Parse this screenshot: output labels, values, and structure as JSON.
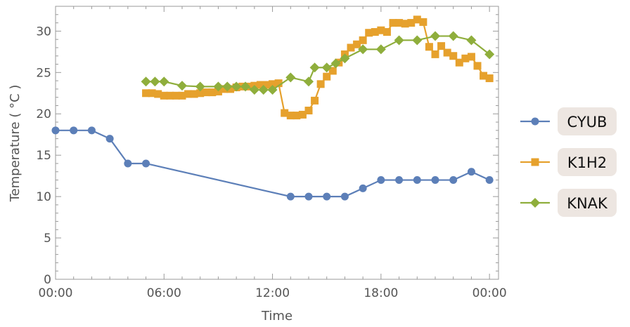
{
  "chart_data": {
    "type": "line",
    "xlabel": "Time",
    "ylabel": "Temperature ( °C )",
    "xlim": [
      "00:00",
      "24:30"
    ],
    "ylim": [
      0,
      33
    ],
    "x_ticks": [
      "00:00",
      "06:00",
      "12:00",
      "18:00",
      "00:00"
    ],
    "y_ticks": [
      0,
      5,
      10,
      15,
      20,
      25,
      30
    ],
    "grid": false,
    "legend_position": "right",
    "series": [
      {
        "name": "CYUB",
        "color": "#5c7fb8",
        "marker": "circle",
        "points": [
          [
            "00:00",
            18
          ],
          [
            "01:00",
            18
          ],
          [
            "02:00",
            18
          ],
          [
            "03:00",
            17
          ],
          [
            "04:00",
            14
          ],
          [
            "05:00",
            14
          ],
          [
            "13:00",
            10
          ],
          [
            "14:00",
            10
          ],
          [
            "15:00",
            10
          ],
          [
            "16:00",
            10
          ],
          [
            "17:00",
            11
          ],
          [
            "18:00",
            12
          ],
          [
            "19:00",
            12
          ],
          [
            "20:00",
            12
          ],
          [
            "21:00",
            12
          ],
          [
            "22:00",
            12
          ],
          [
            "23:00",
            13
          ],
          [
            "24:00",
            12
          ]
        ]
      },
      {
        "name": "K1H2",
        "color": "#e6a12d",
        "marker": "square",
        "points": [
          [
            "05:00",
            22.5
          ],
          [
            "05:20",
            22.5
          ],
          [
            "05:40",
            22.4
          ],
          [
            "06:00",
            22.2
          ],
          [
            "06:20",
            22.2
          ],
          [
            "06:40",
            22.2
          ],
          [
            "07:00",
            22.2
          ],
          [
            "07:20",
            22.4
          ],
          [
            "07:40",
            22.4
          ],
          [
            "08:00",
            22.5
          ],
          [
            "08:20",
            22.6
          ],
          [
            "08:40",
            22.6
          ],
          [
            "09:00",
            22.7
          ],
          [
            "09:20",
            23.0
          ],
          [
            "09:40",
            23.0
          ],
          [
            "10:00",
            23.2
          ],
          [
            "10:20",
            23.3
          ],
          [
            "10:40",
            23.3
          ],
          [
            "11:00",
            23.4
          ],
          [
            "11:20",
            23.5
          ],
          [
            "11:40",
            23.5
          ],
          [
            "12:00",
            23.6
          ],
          [
            "12:20",
            23.7
          ],
          [
            "12:40",
            20.1
          ],
          [
            "13:00",
            19.8
          ],
          [
            "13:20",
            19.8
          ],
          [
            "13:40",
            19.9
          ],
          [
            "14:00",
            20.4
          ],
          [
            "14:20",
            21.6
          ],
          [
            "14:40",
            23.6
          ],
          [
            "15:00",
            24.5
          ],
          [
            "15:20",
            25.2
          ],
          [
            "15:40",
            26.2
          ],
          [
            "16:00",
            27.2
          ],
          [
            "16:20",
            28.0
          ],
          [
            "16:40",
            28.4
          ],
          [
            "17:00",
            28.9
          ],
          [
            "17:20",
            29.8
          ],
          [
            "17:40",
            29.9
          ],
          [
            "18:00",
            30.1
          ],
          [
            "18:20",
            29.9
          ],
          [
            "18:40",
            31.0
          ],
          [
            "19:00",
            31.0
          ],
          [
            "19:20",
            30.9
          ],
          [
            "19:40",
            31.0
          ],
          [
            "20:00",
            31.4
          ],
          [
            "20:20",
            31.1
          ],
          [
            "20:40",
            28.1
          ],
          [
            "21:00",
            27.2
          ],
          [
            "21:20",
            28.2
          ],
          [
            "21:40",
            27.4
          ],
          [
            "22:00",
            27.0
          ],
          [
            "22:20",
            26.2
          ],
          [
            "22:40",
            26.7
          ],
          [
            "23:00",
            26.9
          ],
          [
            "23:20",
            25.8
          ],
          [
            "23:40",
            24.6
          ],
          [
            "24:00",
            24.3
          ]
        ]
      },
      {
        "name": "KNAK",
        "color": "#8fae3c",
        "marker": "diamond",
        "points": [
          [
            "05:00",
            23.9
          ],
          [
            "05:30",
            23.9
          ],
          [
            "06:00",
            23.9
          ],
          [
            "07:00",
            23.4
          ],
          [
            "08:00",
            23.3
          ],
          [
            "09:00",
            23.3
          ],
          [
            "09:30",
            23.3
          ],
          [
            "10:00",
            23.3
          ],
          [
            "10:30",
            23.3
          ],
          [
            "11:00",
            22.9
          ],
          [
            "11:30",
            22.9
          ],
          [
            "12:00",
            22.9
          ],
          [
            "13:00",
            24.4
          ],
          [
            "14:00",
            23.9
          ],
          [
            "14:20",
            25.6
          ],
          [
            "15:00",
            25.6
          ],
          [
            "15:30",
            26.1
          ],
          [
            "16:00",
            26.7
          ],
          [
            "17:00",
            27.8
          ],
          [
            "18:00",
            27.8
          ],
          [
            "19:00",
            28.9
          ],
          [
            "20:00",
            28.9
          ],
          [
            "21:00",
            29.4
          ],
          [
            "22:00",
            29.4
          ],
          [
            "23:00",
            28.9
          ],
          [
            "24:00",
            27.2
          ]
        ]
      }
    ]
  }
}
